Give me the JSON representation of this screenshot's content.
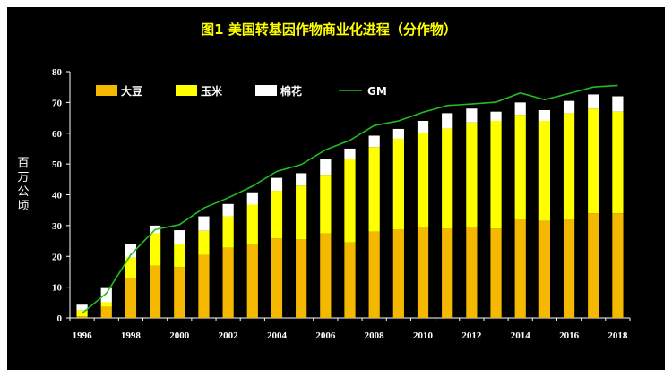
{
  "chart_data": {
    "type": "bar",
    "title": "图1 美国转基因作物商业化进程（分作物）",
    "ylabel": "百万公顷",
    "xlabel": "",
    "ylim": [
      0,
      80
    ],
    "yticks": [
      "0",
      "10",
      "20",
      "30",
      "40",
      "50",
      "60",
      "70",
      "80"
    ],
    "xtick_labels": [
      "1996",
      "1998",
      "2000",
      "2002",
      "2004",
      "2006",
      "2008",
      "2010",
      "2012",
      "2014",
      "2016",
      "2018"
    ],
    "categories": [
      "1996",
      "1997",
      "1998",
      "1999",
      "2000",
      "2001",
      "2002",
      "2003",
      "2004",
      "2005",
      "2006",
      "2007",
      "2008",
      "2009",
      "2010",
      "2011",
      "2012",
      "2013",
      "2014",
      "2015",
      "2016",
      "2017",
      "2018"
    ],
    "stacked": true,
    "legend_position": "top-left",
    "series": [
      {
        "name": "大豆",
        "color": "#f5b800",
        "values": [
          0.5,
          3.6,
          12.8,
          17,
          16.5,
          20.5,
          22.8,
          24,
          25.8,
          25.5,
          27.5,
          24.5,
          28,
          28.7,
          29.5,
          29,
          29.5,
          29,
          32,
          31.5,
          32,
          34,
          34
        ]
      },
      {
        "name": "玉米",
        "color": "#ffff00",
        "values": [
          2,
          1.5,
          6.8,
          10.5,
          7.5,
          7.8,
          10.2,
          12.8,
          15.5,
          17.5,
          19,
          27,
          27.5,
          29.5,
          30.5,
          32.5,
          34,
          35,
          34,
          32.5,
          34.5,
          34,
          33
        ]
      },
      {
        "name": "棉花",
        "color": "#ffffff",
        "values": [
          1.8,
          4.6,
          4.4,
          2.5,
          4.5,
          4.7,
          4.0,
          4.0,
          4.2,
          4.0,
          5.0,
          3.5,
          3.7,
          3.2,
          4.0,
          5.0,
          4.5,
          3.0,
          4.0,
          3.5,
          4.0,
          4.6,
          5.0
        ]
      },
      {
        "name": "GM",
        "color": "#22bb22",
        "type": "line",
        "values": [
          1.5,
          8,
          20.5,
          28.7,
          30.3,
          35.7,
          39,
          42.8,
          47.6,
          49.8,
          54.6,
          57.7,
          62.5,
          64,
          66.8,
          69,
          69.5,
          70.1,
          73.1,
          70.9,
          72.9,
          75,
          75.5
        ]
      }
    ]
  }
}
